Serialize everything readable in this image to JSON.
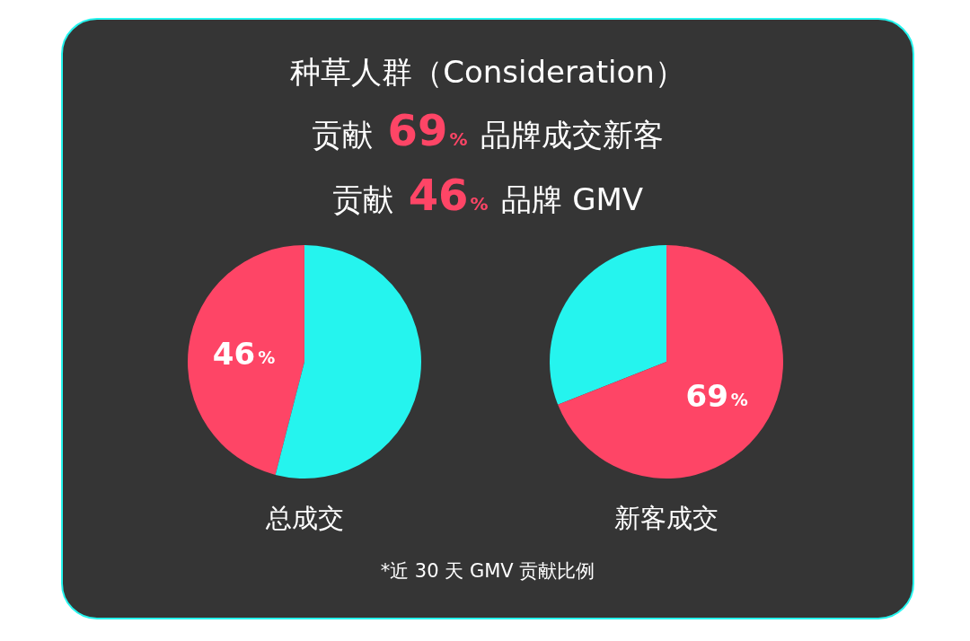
{
  "chart_data": [
    {
      "type": "other",
      "title": "种草人群（Consideration）",
      "annotations": [
        "贡献 69% 品牌成交新客",
        "贡献 46% 品牌 GMV"
      ]
    },
    {
      "type": "pie",
      "title": "总成交",
      "categories": [
        null,
        null
      ],
      "values": [
        46,
        54
      ],
      "colors": [
        "#fe4566",
        "#25f4ee"
      ],
      "value_labels": [
        "46%",
        null
      ]
    },
    {
      "type": "pie",
      "title": "新客成交",
      "categories": [
        null,
        null
      ],
      "values": [
        31,
        69
      ],
      "colors": [
        "#25f4ee",
        "#fe4566"
      ],
      "value_labels": [
        null,
        "69%"
      ]
    },
    {
      "type": "other",
      "annotations": [
        "*近 30 天 GMV 贡献比例"
      ]
    }
  ]
}
